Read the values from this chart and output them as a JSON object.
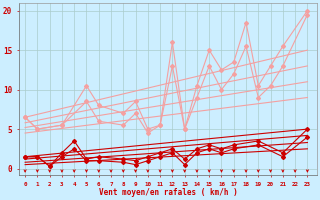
{
  "background_color": "#cceeff",
  "grid_color": "#aacccc",
  "xlabel": "Vent moyen/en rafales ( km/h )",
  "xlabel_color": "#cc0000",
  "tick_color": "#cc0000",
  "x_ticks": [
    0,
    1,
    2,
    3,
    4,
    5,
    6,
    7,
    8,
    9,
    10,
    11,
    12,
    13,
    14,
    15,
    16,
    17,
    18,
    19,
    20,
    21,
    22,
    23
  ],
  "y_ticks": [
    0,
    5,
    10,
    15,
    20
  ],
  "ylim": [
    -0.8,
    21
  ],
  "xlim": [
    -0.5,
    23.8
  ],
  "light_zigzag": [
    [
      6.5,
      5.0,
      5.5,
      10.5,
      8.0,
      7.0,
      8.5,
      5.0,
      5.5,
      16.0,
      5.0,
      10.5,
      15.0,
      12.5,
      13.5,
      18.5,
      10.5,
      13.0,
      15.5,
      20.0
    ],
    [
      6.5,
      5.0,
      5.5,
      8.5,
      6.0,
      5.5,
      7.0,
      4.5,
      5.5,
      13.0,
      5.0,
      9.0,
      13.0,
      10.0,
      12.0,
      15.5,
      9.0,
      10.5,
      13.0,
      19.5
    ]
  ],
  "light_zigzag_x": [
    0,
    1,
    3,
    5,
    6,
    8,
    9,
    10,
    11,
    12,
    13,
    14,
    15,
    16,
    17,
    18,
    19,
    20,
    21,
    23
  ],
  "light_trend_lines": [
    {
      "start": 6.5,
      "end": 15.0
    },
    {
      "start": 5.8,
      "end": 13.0
    },
    {
      "start": 5.2,
      "end": 11.0
    },
    {
      "start": 4.5,
      "end": 9.0
    }
  ],
  "dark_zigzag": [
    [
      1.5,
      1.5,
      0.3,
      2.0,
      3.5,
      1.2,
      1.5,
      1.2,
      1.0,
      1.5,
      2.0,
      2.5,
      1.2,
      2.5,
      3.0,
      2.5,
      3.0,
      3.5,
      2.0,
      5.0
    ],
    [
      1.5,
      1.5,
      0.3,
      1.5,
      2.5,
      1.0,
      1.0,
      0.8,
      0.5,
      1.0,
      1.5,
      2.0,
      0.5,
      2.0,
      2.5,
      2.0,
      2.5,
      3.0,
      1.5,
      4.0
    ]
  ],
  "dark_zigzag_x": [
    0,
    1,
    2,
    3,
    4,
    5,
    6,
    8,
    9,
    10,
    11,
    12,
    13,
    14,
    15,
    16,
    17,
    19,
    21,
    23
  ],
  "dark_trend_lines": [
    {
      "start": 1.5,
      "end": 5.0
    },
    {
      "start": 1.2,
      "end": 4.2
    },
    {
      "start": 0.8,
      "end": 3.3
    },
    {
      "start": 0.5,
      "end": 2.5
    }
  ],
  "light_color": "#f4a0a0",
  "dark_color": "#cc0000",
  "arrow_color": "#cc0000",
  "marker_size": 2.0
}
